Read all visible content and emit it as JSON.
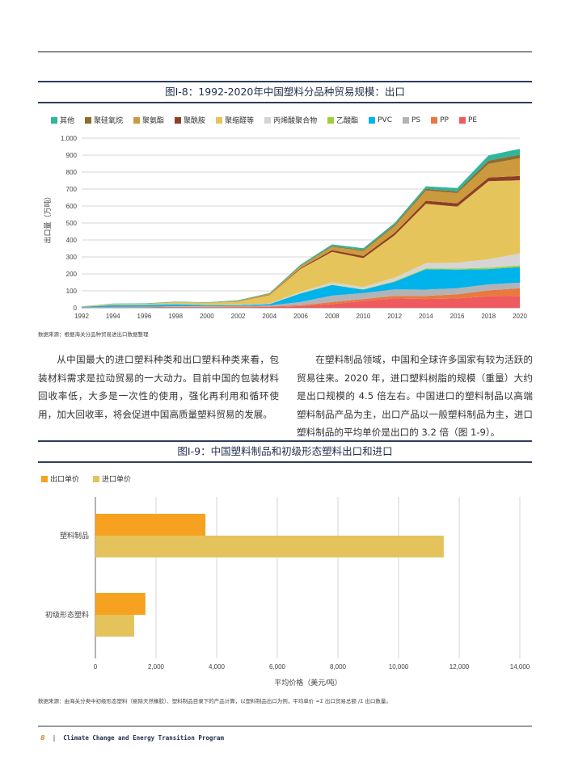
{
  "page": {
    "footer": {
      "page_number": "8",
      "separator": "|",
      "program": "Climate Change and Energy Transition Program"
    }
  },
  "figure8": {
    "title": "图I-8：1992-2020年中国塑料分品种贸易规模：出口",
    "source": "数据来源：根据海关分品种贸易进出口数据整理"
  },
  "paragraphs": {
    "left": "从中国最大的进口塑料种类和出口塑料种类来看，包装材料需求是拉动贸易的一大动力。目前中国的包装材料回收率低，大多是一次性的使用，强化再利用和循环使用，加大回收率，将会促进中国高质量塑料贸易的发展。",
    "right": "在塑料制品领域，中国和全球许多国家有较为活跃的贸易往来。2020 年，进口塑料树脂的规模（重量）大约是出口规模的 4.5 倍左右。中国进口的塑料制品以高端塑料制品产品为主，出口产品以一般塑料制品为主，进口塑料制品的平均单价是出口的 3.2 倍（图 1-9）。"
  },
  "figure9": {
    "title": "图I-9：中国塑料制品和初级形态塑料出口和进口",
    "source": "数据来源：由海关分类中初级形态塑料（剔除天然橡胶）、塑料制品目录下的产品计算，以塑料制品出口为例，平均单价 =Σ 出口贸易总额 /Σ 出口数量。"
  },
  "chart_data": [
    {
      "type": "area",
      "stacked": true,
      "title": "图I-8：1992-2020年中国塑料分品种贸易规模：出口",
      "xlabel": "",
      "ylabel": "出口量（万吨）",
      "ylim": [
        0,
        1000
      ],
      "yticks": [
        0,
        100,
        200,
        300,
        400,
        500,
        600,
        700,
        800,
        900,
        1000
      ],
      "ytick_labels": [
        "0",
        "100",
        "200",
        "300",
        "400",
        "500",
        "600",
        "700",
        "800",
        "900",
        "1,000"
      ],
      "x": [
        1992,
        1994,
        1996,
        1998,
        2000,
        2002,
        2004,
        2006,
        2008,
        2010,
        2012,
        2014,
        2016,
        2018,
        2020
      ],
      "xtick_labels": [
        "1992",
        "1994",
        "1996",
        "1998",
        "2000",
        "2002",
        "2004",
        "2006",
        "2008",
        "2010",
        "2012",
        "2014",
        "2016",
        "2018",
        "2020"
      ],
      "grid": true,
      "legend_position": "top-left",
      "series": [
        {
          "name": "PE",
          "color": "#ee5a5e",
          "values": [
            1,
            2,
            2,
            3,
            3,
            4,
            5,
            10,
            22,
            40,
            55,
            52,
            55,
            68,
            70
          ]
        },
        {
          "name": "PP",
          "color": "#e8793f",
          "values": [
            1,
            1,
            2,
            3,
            3,
            3,
            4,
            5,
            12,
            12,
            15,
            18,
            25,
            35,
            45
          ]
        },
        {
          "name": "PS",
          "color": "#b2b3b7",
          "values": [
            1,
            2,
            2,
            3,
            3,
            3,
            5,
            20,
            38,
            35,
            38,
            37,
            35,
            35,
            33
          ]
        },
        {
          "name": "PVC",
          "color": "#00b3ea",
          "values": [
            3,
            10,
            10,
            12,
            6,
            5,
            8,
            50,
            63,
            20,
            45,
            120,
            110,
            90,
            92
          ]
        },
        {
          "name": "乙酸酯",
          "color": "#9fcf3a",
          "values": [
            0,
            0,
            0,
            0,
            0,
            0,
            0,
            2,
            2,
            2,
            4,
            6,
            6,
            8,
            10
          ]
        },
        {
          "name": "丙烯酸聚合物",
          "color": "#d5d5d6",
          "values": [
            0,
            1,
            1,
            1,
            1,
            2,
            3,
            8,
            13,
            14,
            20,
            30,
            35,
            50,
            70
          ]
        },
        {
          "name": "聚缩醛等",
          "color": "#e6c45c",
          "values": [
            2,
            6,
            6,
            10,
            13,
            20,
            50,
            135,
            180,
            170,
            250,
            350,
            330,
            460,
            432
          ]
        },
        {
          "name": "聚酰胺",
          "color": "#8e3f24",
          "values": [
            0,
            0,
            0,
            0,
            0,
            1,
            2,
            5,
            10,
            12,
            15,
            18,
            20,
            22,
            25
          ]
        },
        {
          "name": "聚氨酯",
          "color": "#cb9a3f",
          "values": [
            0,
            1,
            1,
            2,
            2,
            3,
            6,
            12,
            20,
            30,
            40,
            60,
            60,
            80,
            105
          ]
        },
        {
          "name": "聚硅氧烷",
          "color": "#8f6b2e",
          "values": [
            0,
            0,
            0,
            0,
            0,
            1,
            1,
            2,
            4,
            6,
            8,
            10,
            10,
            20,
            20
          ]
        },
        {
          "name": "其他",
          "color": "#2fb59a",
          "values": [
            1,
            2,
            2,
            2,
            2,
            3,
            3,
            6,
            10,
            10,
            10,
            15,
            20,
            30,
            35
          ]
        }
      ],
      "legend_order": [
        "其他",
        "聚硅氧烷",
        "聚氨酯",
        "聚酰胺",
        "聚缩醛等",
        "丙烯酸聚合物",
        "乙酸酯",
        "PVC",
        "PS",
        "PP",
        "PE"
      ]
    },
    {
      "type": "bar",
      "orientation": "horizontal",
      "title": "图I-9：中国塑料制品和初级形态塑料出口和进口",
      "xlabel": "平均价格（美元/吨）",
      "ylabel": "",
      "xlim": [
        0,
        14000
      ],
      "xticks": [
        0,
        2000,
        4000,
        6000,
        8000,
        10000,
        12000,
        14000
      ],
      "xtick_labels": [
        "0",
        "2,000",
        "4,000",
        "6,000",
        "8,000",
        "10,000",
        "12,000",
        "14,000"
      ],
      "categories": [
        "塑料制品",
        "初级形态塑料"
      ],
      "grid": true,
      "legend_position": "top-left",
      "series": [
        {
          "name": "出口单价",
          "color": "#f6a11f",
          "values": [
            3630,
            1650
          ]
        },
        {
          "name": "进口单价",
          "color": "#e5c35c",
          "values": [
            11490,
            1280
          ]
        }
      ]
    }
  ]
}
